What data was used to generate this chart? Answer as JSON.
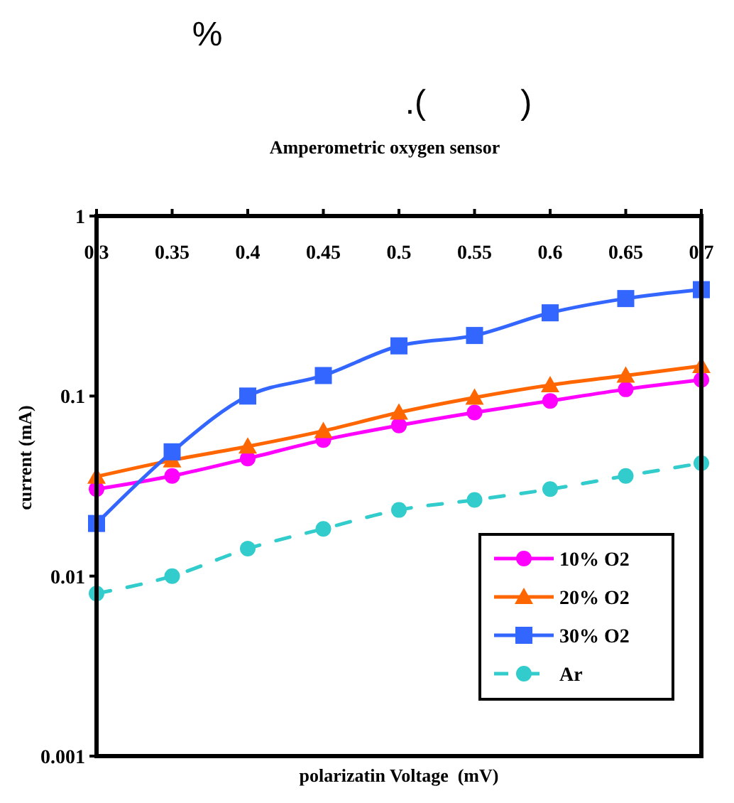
{
  "chart_data": {
    "type": "line",
    "title": "Amperometric oxygen sensor",
    "annotations": [
      "%",
      ".(          )"
    ],
    "xlabel": "polarizatin Voltage  (mV)",
    "ylabel": "current (mA)",
    "log": "y",
    "x": [
      0.3,
      0.35,
      0.4,
      0.45,
      0.5,
      0.55,
      0.6,
      0.65,
      0.7
    ],
    "xlim": [
      0.3,
      0.7
    ],
    "xticks": [
      0.3,
      0.35,
      0.4,
      0.45,
      0.5,
      0.55,
      0.6,
      0.65,
      0.7
    ],
    "ylim": [
      0.001,
      1
    ],
    "yticks": [
      0.001,
      0.01,
      0.1,
      1
    ],
    "series": [
      {
        "name": "10% O2",
        "color": "#ff00ff",
        "marker": "circle",
        "line_style": "solid",
        "values": [
          0.0304,
          0.036,
          0.045,
          0.057,
          0.0687,
          0.081,
          0.094,
          0.109,
          0.123
        ]
      },
      {
        "name": "20% O2",
        "color": "#ff6600",
        "marker": "triangle",
        "line_style": "solid",
        "values": [
          0.0357,
          0.044,
          0.0525,
          0.064,
          0.081,
          0.098,
          0.115,
          0.13,
          0.147
        ]
      },
      {
        "name": "30% O2",
        "color": "#3366ff",
        "marker": "square",
        "line_style": "solid",
        "values": [
          0.0196,
          0.049,
          0.1,
          0.13,
          0.19,
          0.217,
          0.29,
          0.348,
          0.39
        ]
      },
      {
        "name": "Ar",
        "color": "#33cccc",
        "marker": "circle",
        "line_style": "dashed",
        "values": [
          0.008,
          0.01,
          0.0142,
          0.0183,
          0.0233,
          0.0265,
          0.0304,
          0.036,
          0.0424
        ]
      }
    ],
    "legend": "bottom right",
    "grid": false
  }
}
